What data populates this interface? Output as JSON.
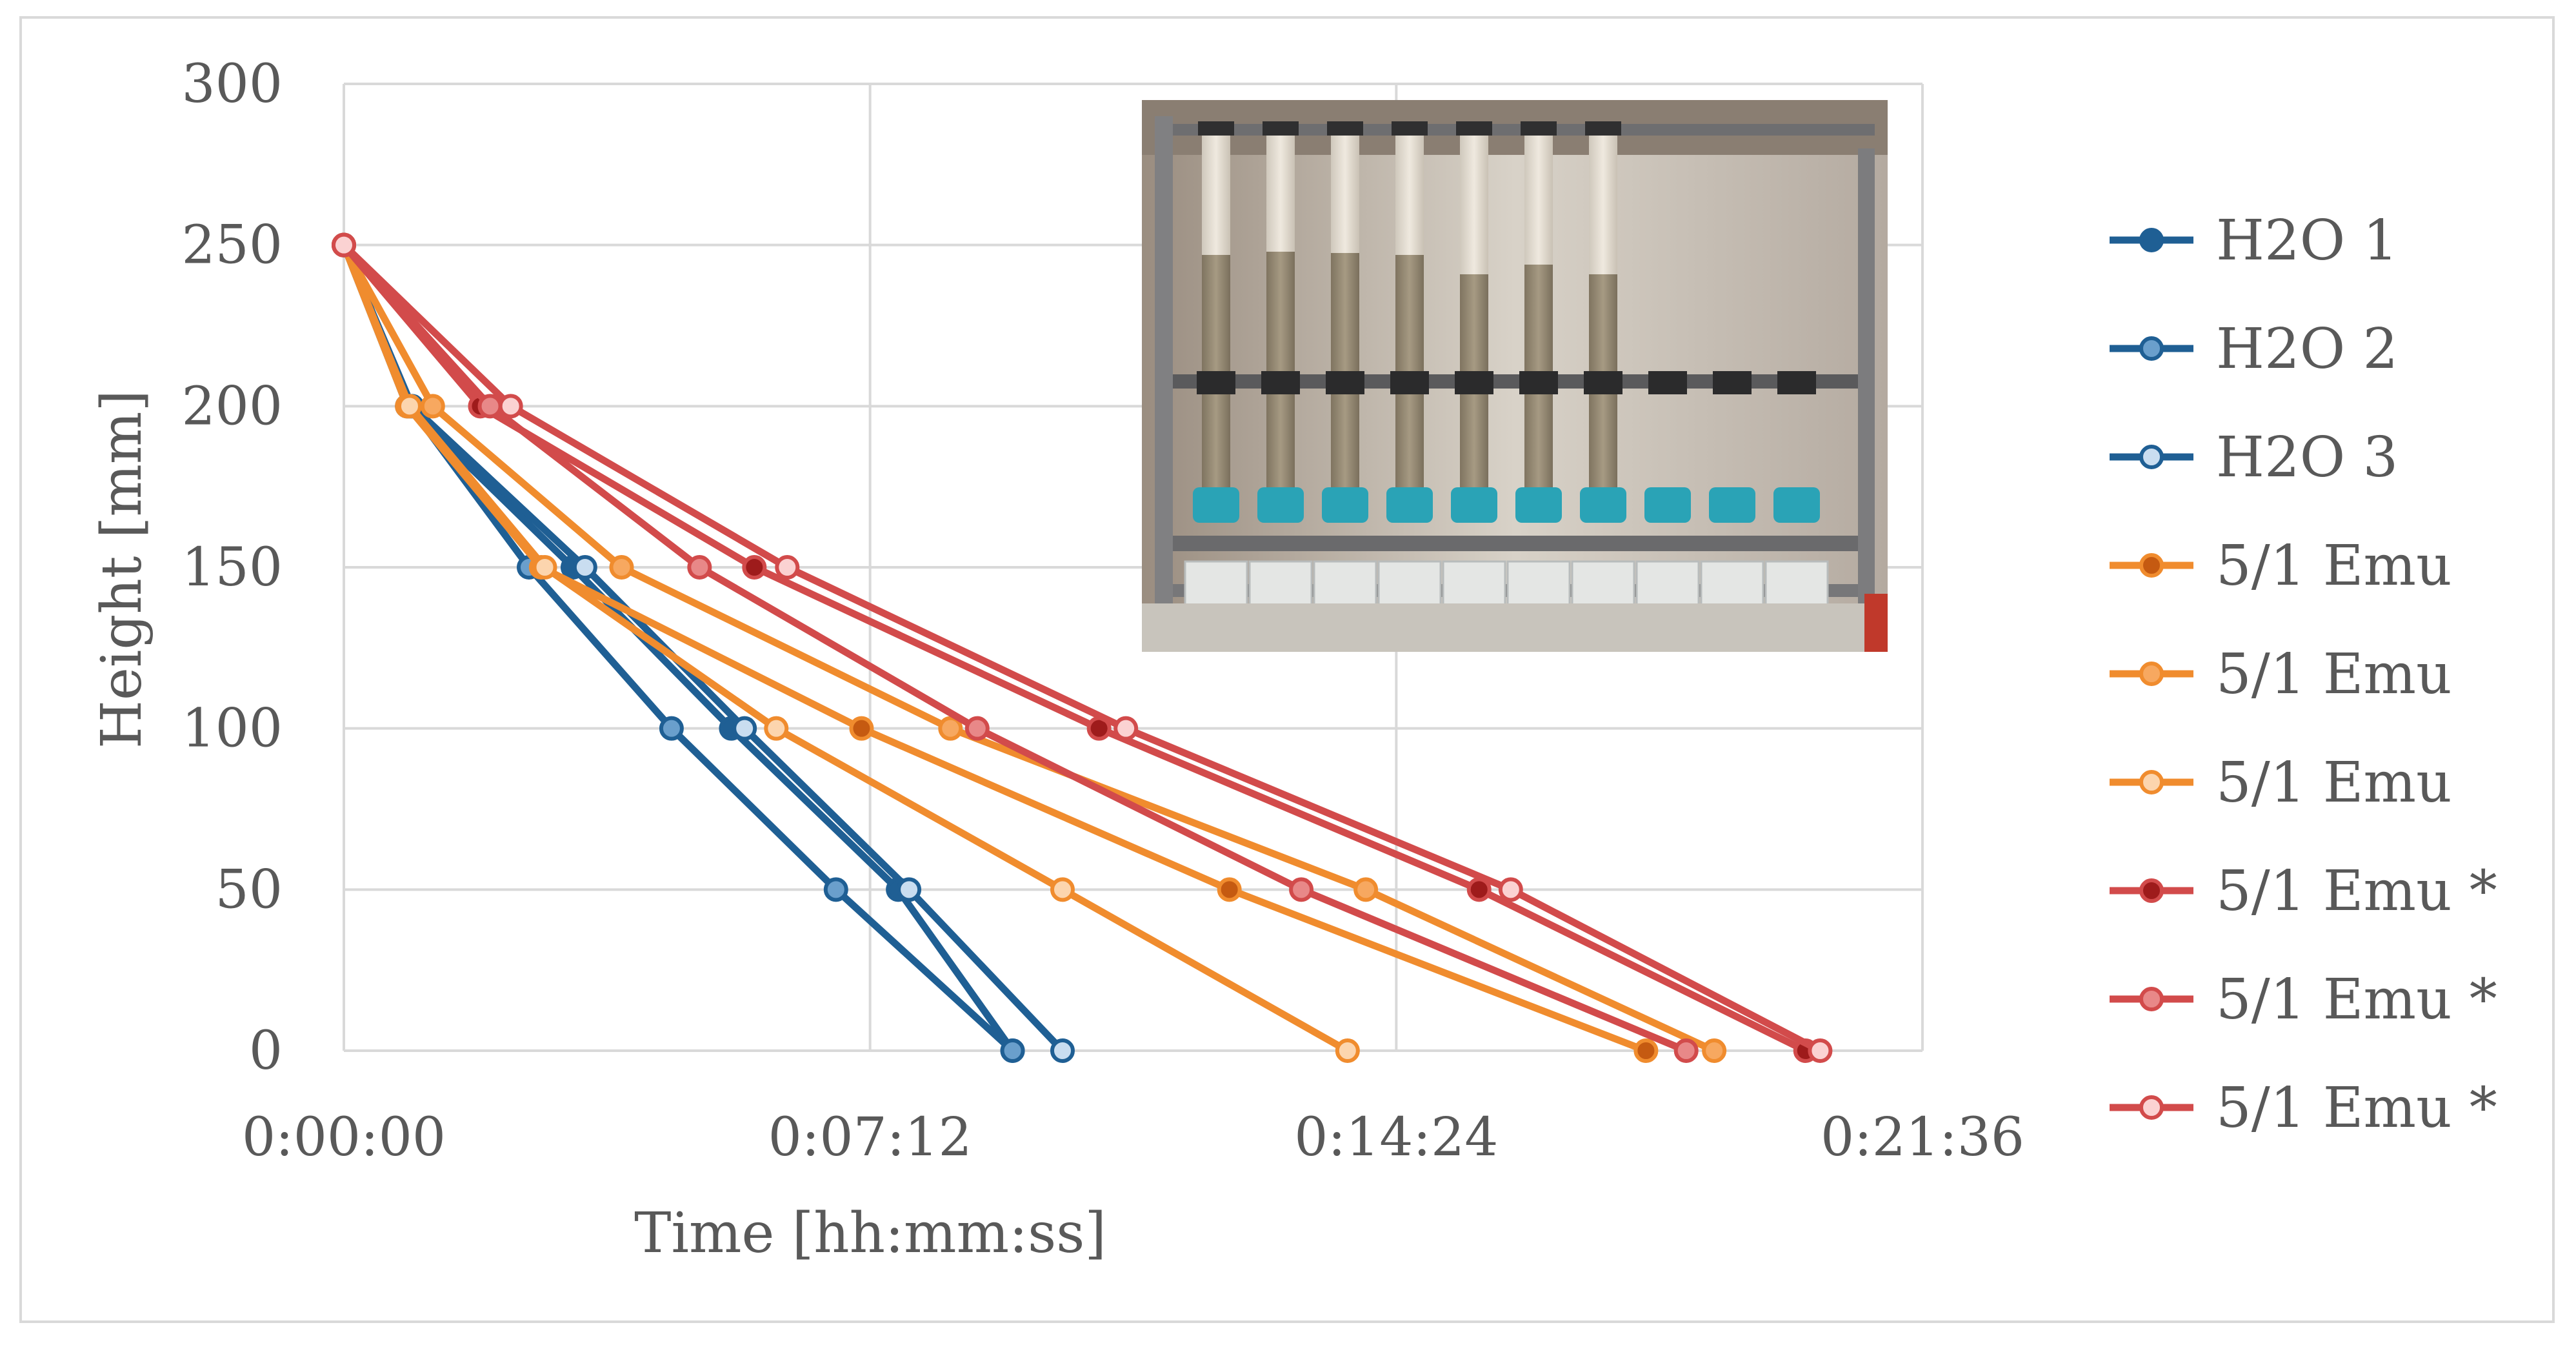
{
  "chart_data": {
    "type": "line",
    "xlabel": "Time [hh:mm:ss]",
    "ylabel": "Height [mm]",
    "x_unit": "seconds",
    "xlim": [
      0,
      1296
    ],
    "ylim": [
      0,
      300
    ],
    "x_ticks": [
      0,
      432,
      864,
      1296
    ],
    "x_tick_labels": [
      "0:00:00",
      "0:07:12",
      "0:14:24",
      "0:21:36"
    ],
    "y_ticks": [
      0,
      50,
      100,
      150,
      200,
      250,
      300
    ],
    "y_tick_labels": [
      "0",
      "50",
      "100",
      "150",
      "200",
      "250",
      "300"
    ],
    "grid": true,
    "legend_position": "right",
    "inset_photo": true,
    "series": [
      {
        "name": "H2O 1",
        "color": "#1f5f94",
        "marker_fill": "#1f5f94",
        "x": [
          0,
          52,
          188,
          318,
          455,
          549
        ],
        "y": [
          250,
          200,
          150,
          100,
          50,
          0
        ]
      },
      {
        "name": "H2O 2",
        "color": "#1f5f94",
        "marker_fill": "#6a9fcc",
        "x": [
          0,
          54,
          152,
          269,
          404,
          549
        ],
        "y": [
          250,
          200,
          150,
          100,
          50,
          0
        ]
      },
      {
        "name": "H2O 3",
        "color": "#1f5f94",
        "marker_fill": "#c9ddf0",
        "x": [
          0,
          56,
          198,
          329,
          464,
          590
        ],
        "y": [
          250,
          200,
          150,
          100,
          50,
          0
        ]
      },
      {
        "name": "5/1 Emu",
        "color": "#f08c2e",
        "marker_fill": "#c55a11",
        "x": [
          0,
          52,
          162,
          425,
          727,
          1069
        ],
        "y": [
          250,
          200,
          150,
          100,
          50,
          0
        ]
      },
      {
        "name": "5/1 Emu",
        "color": "#f08c2e",
        "marker_fill": "#f7a860",
        "x": [
          0,
          73,
          228,
          498,
          839,
          1125
        ],
        "y": [
          250,
          200,
          150,
          100,
          50,
          0
        ]
      },
      {
        "name": "5/1 Emu",
        "color": "#f08c2e",
        "marker_fill": "#fcd5ae",
        "x": [
          0,
          54,
          165,
          355,
          590,
          824
        ],
        "y": [
          250,
          200,
          150,
          100,
          50,
          0
        ]
      },
      {
        "name": "5/1 Emu *",
        "color": "#d24b4b",
        "marker_fill": "#9e1b1b",
        "x": [
          0,
          112,
          337,
          620,
          932,
          1200
        ],
        "y": [
          250,
          200,
          150,
          100,
          50,
          0
        ]
      },
      {
        "name": "5/1 Emu *",
        "color": "#d24b4b",
        "marker_fill": "#e88888",
        "x": [
          0,
          120,
          292,
          520,
          786,
          1102
        ],
        "y": [
          250,
          200,
          150,
          100,
          50,
          0
        ]
      },
      {
        "name": "5/1 Emu *",
        "color": "#d24b4b",
        "marker_fill": "#fbd2d2",
        "x": [
          0,
          137,
          364,
          642,
          958,
          1212
        ],
        "y": [
          250,
          200,
          150,
          100,
          50,
          0
        ]
      }
    ]
  }
}
